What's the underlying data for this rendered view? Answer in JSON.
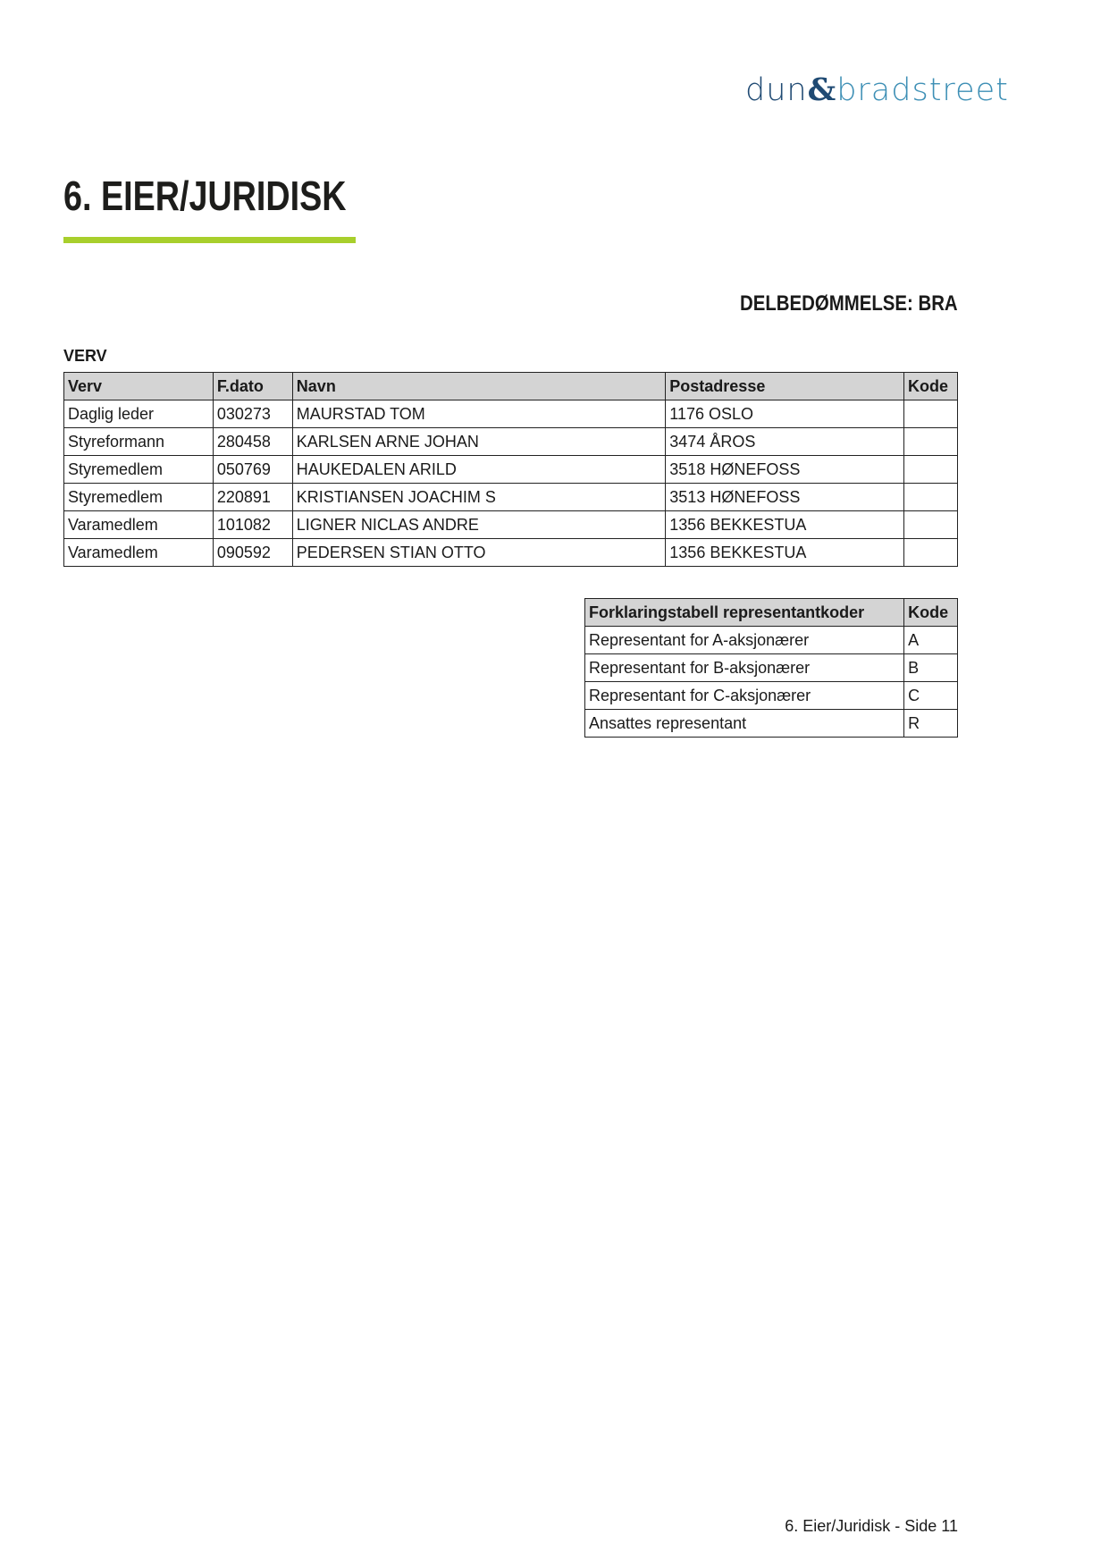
{
  "logo": {
    "part1": "dun",
    "amp": "&",
    "part2": "bradstreet"
  },
  "brand_color": "#a8cf2c",
  "page_title": "6. EIER/JURIDISK",
  "rating": "DELBEDØMMELSE: BRA",
  "verv": {
    "section_title": "VERV",
    "headers": [
      "Verv",
      "F.dato",
      "Navn",
      "Postadresse",
      "Kode"
    ],
    "rows": [
      [
        "Daglig leder",
        "030273",
        "MAURSTAD TOM",
        "1176 OSLO",
        ""
      ],
      [
        "Styreformann",
        "280458",
        "KARLSEN ARNE JOHAN",
        "3474 ÅROS",
        ""
      ],
      [
        "Styremedlem",
        "050769",
        "HAUKEDALEN ARILD",
        "3518 HØNEFOSS",
        ""
      ],
      [
        "Styremedlem",
        "220891",
        "KRISTIANSEN JOACHIM S",
        "3513 HØNEFOSS",
        ""
      ],
      [
        "Varamedlem",
        "101082",
        "LIGNER NICLAS ANDRE",
        "1356 BEKKESTUA",
        ""
      ],
      [
        "Varamedlem",
        "090592",
        "PEDERSEN STIAN OTTO",
        "1356 BEKKESTUA",
        ""
      ]
    ]
  },
  "codes": {
    "headers": [
      "Forklaringstabell representantkoder",
      "Kode"
    ],
    "rows": [
      [
        "Representant for A-aksjonærer",
        "A"
      ],
      [
        "Representant for B-aksjonærer",
        "B"
      ],
      [
        "Representant for C-aksjonærer",
        "C"
      ],
      [
        "Ansattes representant",
        "R"
      ]
    ]
  },
  "footer": "6. Eier/Juridisk - Side 11"
}
